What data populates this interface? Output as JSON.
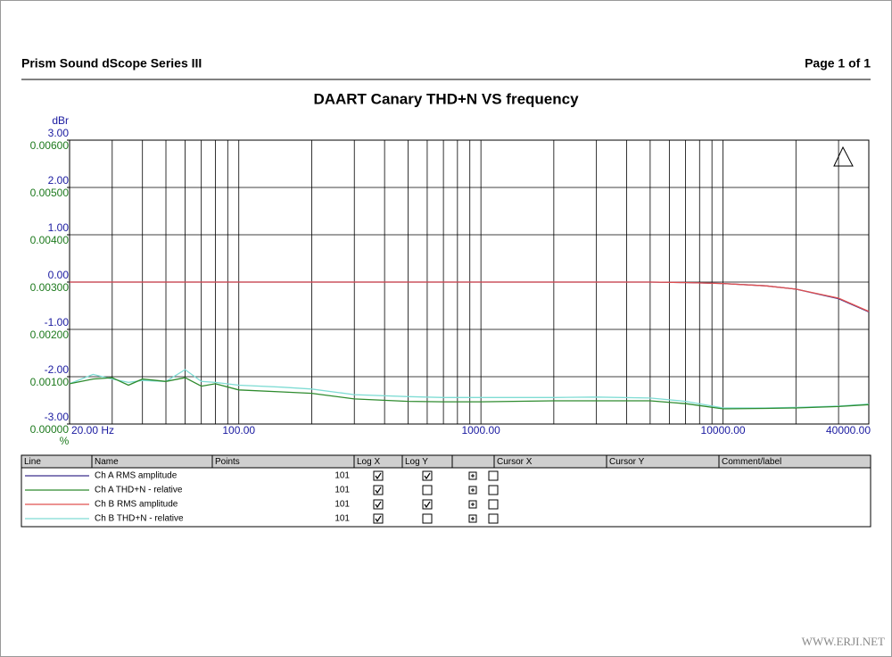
{
  "header": {
    "left": "Prism Sound dScope Series III",
    "right": "Page 1 of 1"
  },
  "chart_data": {
    "type": "line",
    "title": "DAART Canary THD+N VS frequency",
    "ylabel": "dBr",
    "y2label": "%",
    "xscale": "log",
    "grid": true,
    "xlim": [
      20,
      40000
    ],
    "xticks": [
      {
        "value": 20,
        "label": "20.00 Hz"
      },
      {
        "value": 100,
        "label": "100.00"
      },
      {
        "value": 1000,
        "label": "1000.00"
      },
      {
        "value": 10000,
        "label": "10000.00"
      },
      {
        "value": 40000,
        "label": "40000.00"
      }
    ],
    "xminor": [
      30,
      40,
      50,
      60,
      70,
      80,
      90,
      200,
      300,
      400,
      500,
      600,
      700,
      800,
      900,
      2000,
      3000,
      4000,
      5000,
      6000,
      7000,
      8000,
      9000,
      20000,
      30000
    ],
    "ylim": [
      -3,
      3
    ],
    "yticks": [
      {
        "value": 3,
        "label": "3.00"
      },
      {
        "value": 2,
        "label": "2.00"
      },
      {
        "value": 1,
        "label": "1.00"
      },
      {
        "value": 0,
        "label": "0.00"
      },
      {
        "value": -1,
        "label": "-1.00"
      },
      {
        "value": -2,
        "label": "-2.00"
      },
      {
        "value": -3,
        "label": "-3.00"
      }
    ],
    "y2lim": [
      0,
      0.006
    ],
    "y2ticks": [
      {
        "value": 0.006,
        "label": "0.00600"
      },
      {
        "value": 0.005,
        "label": "0.00500"
      },
      {
        "value": 0.004,
        "label": "0.00400"
      },
      {
        "value": 0.003,
        "label": "0.00300"
      },
      {
        "value": 0.002,
        "label": "0.00200"
      },
      {
        "value": 0.001,
        "label": "0.00100"
      },
      {
        "value": 0,
        "label": "0.00000"
      }
    ],
    "x": [
      20,
      25,
      30,
      35,
      40,
      50,
      60,
      70,
      80,
      100,
      150,
      200,
      300,
      500,
      700,
      1000,
      2000,
      3000,
      5000,
      7000,
      10000,
      15000,
      20000,
      30000,
      40000
    ],
    "series": [
      {
        "name": "Ch A RMS amplitude",
        "color": "#3b2f8c",
        "values": [
          0,
          0,
          0,
          0,
          0,
          0,
          0,
          0,
          0,
          0,
          0,
          0,
          0,
          0,
          0,
          0,
          0,
          0,
          0,
          -0.01,
          -0.03,
          -0.08,
          -0.15,
          -0.35,
          -0.63
        ]
      },
      {
        "name": "Ch A THD+N - relative",
        "color": "#2e8b2e",
        "axis": "y2",
        "values": [
          0.00085,
          0.00095,
          0.00098,
          0.00082,
          0.00095,
          0.0009,
          0.00098,
          0.0008,
          0.00085,
          0.00072,
          0.00068,
          0.00065,
          0.00053,
          0.00048,
          0.00047,
          0.00047,
          0.00049,
          0.00049,
          0.00049,
          0.00043,
          0.00032,
          0.00033,
          0.00034,
          0.00037,
          0.00041
        ]
      },
      {
        "name": "Ch B  RMS amplitude",
        "color": "#e0504f",
        "values": [
          0,
          0,
          0,
          0,
          0,
          0,
          0,
          0,
          0,
          0,
          0,
          0,
          0,
          0,
          0,
          0,
          0,
          0,
          0,
          -0.01,
          -0.03,
          -0.08,
          -0.15,
          -0.34,
          -0.62
        ]
      },
      {
        "name": "Ch B THD+N - relative",
        "color": "#7fdcd4",
        "axis": "y2",
        "values": [
          0.00085,
          0.00105,
          0.00095,
          0.00088,
          0.00092,
          0.0009,
          0.00115,
          0.0009,
          0.00088,
          0.00082,
          0.00078,
          0.00074,
          0.00062,
          0.00058,
          0.00056,
          0.00056,
          0.00056,
          0.00057,
          0.00055,
          0.00048,
          0.00034,
          0.00034,
          0.00035,
          0.00038,
          0.00042
        ]
      }
    ]
  },
  "legend_table": {
    "columns": [
      "Line",
      "Name",
      "Points",
      "Log X",
      "Log Y",
      "Cursor X",
      "Cursor Y",
      "Comment/label"
    ],
    "rows": [
      {
        "points": 101,
        "log_x": true,
        "log_y": true
      },
      {
        "points": 101,
        "log_x": true,
        "log_y": false
      },
      {
        "points": 101,
        "log_x": true,
        "log_y": true
      },
      {
        "points": 101,
        "log_x": true,
        "log_y": false
      }
    ]
  },
  "watermark": "WWW.ERJI.NET"
}
